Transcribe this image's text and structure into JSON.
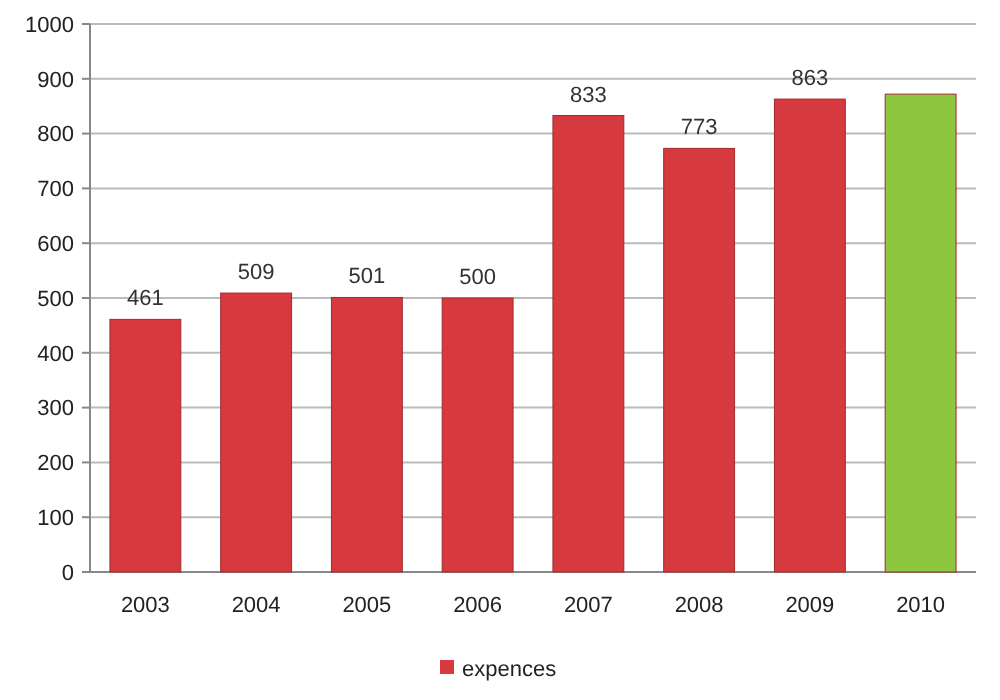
{
  "chart_data": {
    "type": "bar",
    "categories": [
      "2003",
      "2004",
      "2005",
      "2006",
      "2007",
      "2008",
      "2009",
      "2010"
    ],
    "series": [
      {
        "name": "expences",
        "color": "#d63a3f",
        "colors": [
          "#d63a3f",
          "#d63a3f",
          "#d63a3f",
          "#d63a3f",
          "#d63a3f",
          "#d63a3f",
          "#d63a3f",
          "#8dc63f"
        ],
        "values": [
          461,
          509,
          501,
          500,
          833,
          773,
          863,
          872
        ],
        "value_labels": [
          "461",
          "509",
          "501",
          "500",
          "833",
          "773",
          "863",
          null
        ]
      }
    ],
    "ylim": [
      0,
      1000
    ],
    "yticks": [
      0,
      100,
      200,
      300,
      400,
      500,
      600,
      700,
      800,
      900,
      1000
    ],
    "grid": "y",
    "legend": "bottom"
  }
}
